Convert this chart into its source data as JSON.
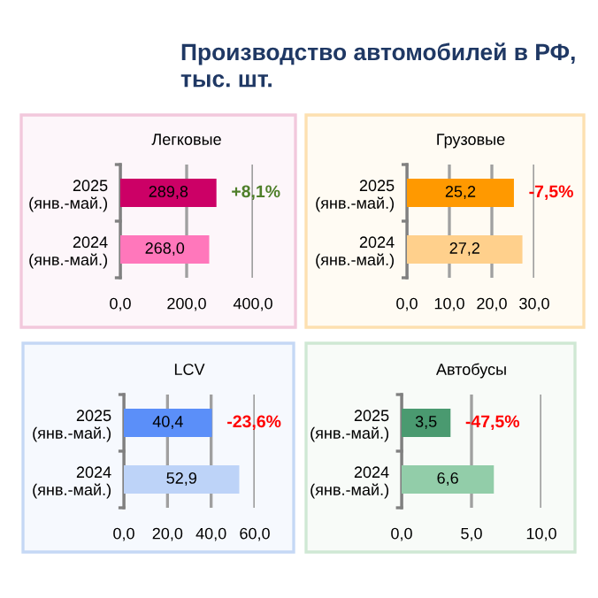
{
  "chart_data": [
    {
      "type": "bar",
      "orientation": "horizontal",
      "title": "Легковые",
      "annotations": [
        "Производство автомобилей в РФ,\nтыс. шт.",
        {
          "text": "+8,1%",
          "x": 289.8,
          "y": "2025\n(янв.-май.)"
        }
      ],
      "categories": [
        "2025\n(янв.-май.)",
        "2024\n(янв.-май.)"
      ],
      "values": [
        289.8,
        268.0
      ],
      "value_labels": [
        "289,8",
        "268,0"
      ],
      "colors": [
        "#cc0066",
        "#ff77bb"
      ],
      "xlim": [
        0,
        400
      ],
      "xticks": [
        {
          "value": 0,
          "label": "0,0"
        },
        {
          "value": 200,
          "label": "200,0"
        },
        {
          "value": 400,
          "label": "400,0"
        }
      ],
      "grid": "x"
    },
    {
      "type": "bar",
      "orientation": "horizontal",
      "title": "Грузовые",
      "annotations": [
        {
          "text": "-7,5%",
          "x": 25.2,
          "y": "2025\n(янв.-май.)"
        }
      ],
      "categories": [
        "2025\n(янв.-май.)",
        "2024\n(янв.-май.)"
      ],
      "values": [
        25.2,
        27.2
      ],
      "value_labels": [
        "25,2",
        "27,2"
      ],
      "colors": [
        "#ff9900",
        "#ffd08c"
      ],
      "xlim": [
        0,
        30
      ],
      "xticks": [
        {
          "value": 0,
          "label": "0,0"
        },
        {
          "value": 10,
          "label": "10,0"
        },
        {
          "value": 20,
          "label": "20,0"
        },
        {
          "value": 30,
          "label": "30,0"
        }
      ],
      "grid": "x"
    },
    {
      "type": "bar",
      "orientation": "horizontal",
      "title": "LCV",
      "annotations": [
        {
          "text": "-23,6%",
          "x": 40.4,
          "y": "2025\n(янв.-май.)"
        }
      ],
      "categories": [
        "2025\n(янв.-май.)",
        "2024\n(янв.-май.)"
      ],
      "values": [
        40.4,
        52.9
      ],
      "value_labels": [
        "40,4",
        "52,9"
      ],
      "colors": [
        "#5b8ff9",
        "#bdd3f8"
      ],
      "xlim": [
        0,
        60
      ],
      "xticks": [
        {
          "value": 0,
          "label": "0,0"
        },
        {
          "value": 20,
          "label": "20,0"
        },
        {
          "value": 40,
          "label": "40,0"
        },
        {
          "value": 60,
          "label": "60,0"
        }
      ],
      "grid": "x"
    },
    {
      "type": "bar",
      "orientation": "horizontal",
      "title": "Автобусы",
      "annotations": [
        {
          "text": "-47,5%",
          "x": 3.5,
          "y": "2025\n(янв.-май.)"
        }
      ],
      "categories": [
        "2025\n(янв.-май.)",
        "2024\n(янв.-май.)"
      ],
      "values": [
        3.5,
        6.6
      ],
      "value_labels": [
        "3,5",
        "6,6"
      ],
      "colors": [
        "#4a9a70",
        "#92cda9"
      ],
      "xlim": [
        0,
        10
      ],
      "xticks": [
        {
          "value": 0,
          "label": "0,0"
        },
        {
          "value": 5,
          "label": "5,0"
        },
        {
          "value": 10,
          "label": "10,0"
        }
      ],
      "grid": "x"
    }
  ]
}
